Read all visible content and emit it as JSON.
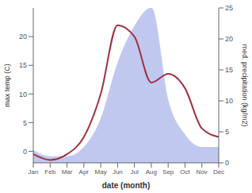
{
  "chart_data": {
    "type": "line",
    "xlabel": "date (month)",
    "ylabel": "max temp (C)",
    "y2label": "med. precipitation (kg/m2)",
    "categories": [
      "Jan",
      "Feb",
      "Mar",
      "Apr",
      "May",
      "Jun",
      "Jul",
      "Aug",
      "Sep",
      "Oct",
      "Nov",
      "Dec"
    ],
    "series": [
      {
        "type": "area",
        "axis": "y2",
        "color": "#c0c8f0",
        "values": [
          2.0,
          1.0,
          1.0,
          2.5,
          7.0,
          16.0,
          22.0,
          25.0,
          10.0,
          4.5,
          2.5,
          2.5
        ]
      },
      {
        "type": "line",
        "axis": "y",
        "color": "#a03040",
        "values": [
          -0.5,
          -1.5,
          -0.5,
          2.5,
          10.0,
          22.0,
          20.0,
          12.0,
          13.5,
          11.0,
          4.0,
          2.5
        ]
      }
    ],
    "ylim": [
      -2,
      25
    ],
    "yticks": [
      0,
      5,
      10,
      15,
      20
    ],
    "y2lim": [
      0,
      25
    ],
    "y2ticks": [
      0,
      5,
      10,
      15,
      20,
      25
    ],
    "grid": false
  }
}
